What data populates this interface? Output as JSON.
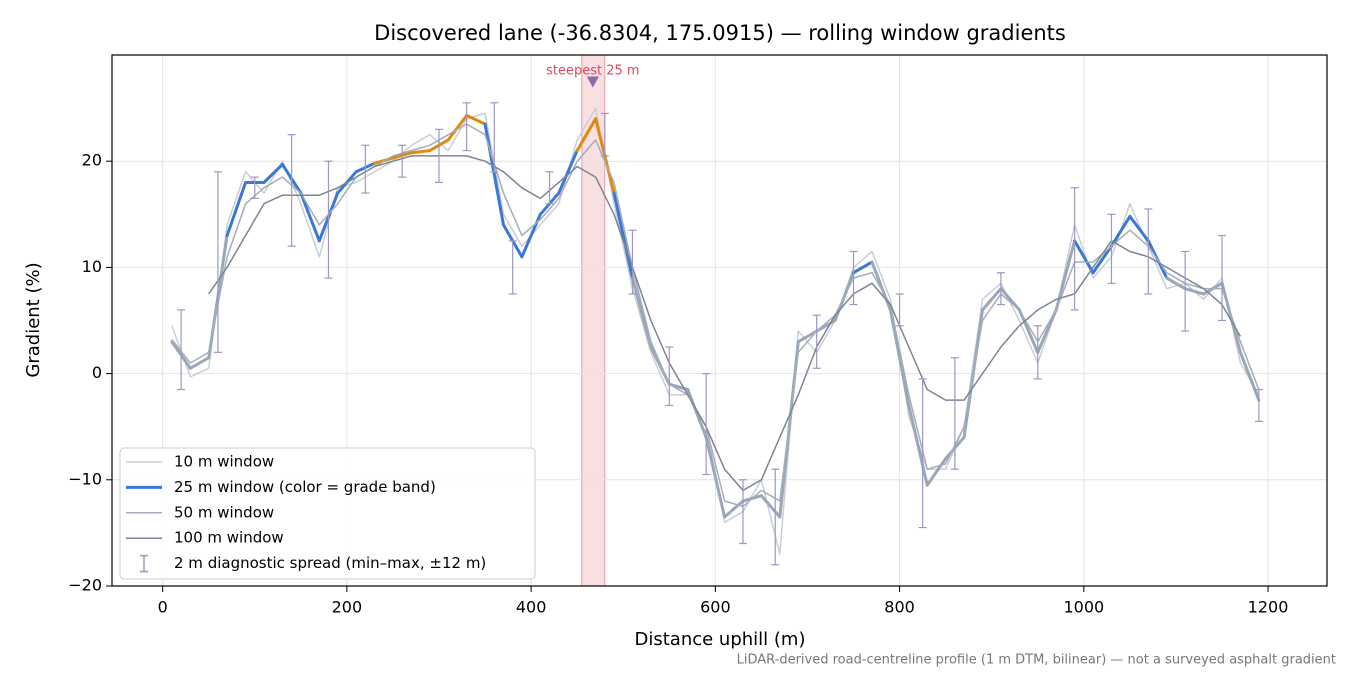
{
  "chart_data": {
    "type": "line",
    "title": "Discovered lane (-36.8304, 175.0915) — rolling window gradients",
    "x_label": "Distance uphill (m)",
    "y_label": "Gradient (%)",
    "footnote": "LiDAR-derived road-centreline profile (1 m DTM, bilinear) — not a surveyed asphalt gradient",
    "xlim": [
      -55,
      1264
    ],
    "ylim": [
      -20,
      30
    ],
    "xticks": [
      0,
      200,
      400,
      600,
      800,
      1000,
      1200
    ],
    "yticks": [
      {
        "value": -20,
        "label": "−20"
      },
      {
        "value": -10,
        "label": "−10"
      },
      0,
      10,
      20
    ],
    "grid": true,
    "legend": "lower left",
    "x": [
      10,
      30,
      50,
      70,
      90,
      110,
      130,
      150,
      170,
      190,
      210,
      230,
      250,
      270,
      290,
      310,
      330,
      350,
      370,
      390,
      410,
      430,
      450,
      470,
      490,
      510,
      530,
      550,
      570,
      590,
      610,
      630,
      650,
      670,
      690,
      710,
      730,
      750,
      770,
      790,
      810,
      830,
      850,
      870,
      890,
      910,
      930,
      950,
      970,
      990,
      1010,
      1030,
      1050,
      1070,
      1090,
      1110,
      1130,
      1150,
      1170,
      1190
    ],
    "series": [
      {
        "name": "10 m window",
        "color": "#c9ced6",
        "width": 1.5,
        "values": [
          4.5,
          -0.3,
          0.5,
          14,
          19,
          17,
          20,
          16,
          11,
          17.5,
          18,
          19,
          20,
          21.5,
          22.5,
          21,
          24,
          24.5,
          15,
          12,
          14,
          16,
          22,
          25,
          16,
          8,
          2,
          -2,
          -2,
          -5,
          -14,
          -13,
          -10,
          -17,
          4,
          2,
          5,
          10,
          11.5,
          7,
          -4,
          -9,
          -9,
          -5,
          7,
          8.5,
          5,
          1,
          6,
          14,
          9,
          11,
          16,
          12,
          8,
          8.5,
          7,
          9,
          1,
          -2
        ]
      },
      {
        "name": "25 m window (color = grade band)",
        "color": "#9aa7b8",
        "width": 3,
        "grade_bands": [
          {
            "min": 20,
            "color": "#e08a0b"
          },
          {
            "min": 10,
            "color": "#3a78d4"
          }
        ],
        "values": [
          3,
          0.5,
          1.5,
          13,
          18,
          18,
          19.7,
          17,
          12.5,
          17,
          19,
          19.8,
          20.3,
          20.8,
          21,
          22,
          24.3,
          23.5,
          14,
          11,
          15,
          17,
          21,
          24,
          17,
          9,
          2.5,
          -1,
          -1.5,
          -6,
          -13.5,
          -12,
          -11.5,
          -13.5,
          3,
          4,
          5,
          9.5,
          10.5,
          6,
          -3,
          -10.5,
          -8,
          -6,
          6,
          8,
          6,
          2,
          6,
          12.5,
          9.5,
          12,
          14.8,
          12.5,
          9,
          8,
          7.5,
          8.5,
          2,
          -2.5
        ]
      },
      {
        "name": "50 m window",
        "color": "#a3adbb",
        "width": 1.5,
        "values": [
          3.2,
          1,
          2,
          11,
          16,
          17.5,
          18.5,
          17,
          14,
          16,
          18.5,
          19.5,
          20.5,
          21,
          21.5,
          22.5,
          23.5,
          22.5,
          17,
          13,
          14.5,
          16.5,
          20,
          22,
          18,
          10,
          3,
          -1,
          -2,
          -5,
          -12,
          -12.5,
          -11,
          -12,
          2,
          4,
          5.5,
          9,
          9.5,
          6.5,
          -2,
          -9,
          -8.5,
          -5,
          5,
          7.5,
          6,
          3,
          6,
          10.5,
          10.5,
          12,
          13.5,
          12,
          9.5,
          8.5,
          8,
          8,
          3,
          -1.5
        ]
      },
      {
        "name": "100 m window",
        "color": "#7c8595",
        "width": 1.5,
        "values": [
          null,
          null,
          7.5,
          10,
          13,
          16,
          16.8,
          16.8,
          16.8,
          17.5,
          18.5,
          19.5,
          20,
          20.5,
          20.5,
          20.5,
          20.5,
          20,
          19,
          17.5,
          16.5,
          18,
          19.5,
          18.5,
          15,
          10,
          5,
          1,
          -2,
          -5,
          -9,
          -11,
          -10,
          -6,
          -2,
          2.5,
          5.5,
          7.5,
          8.5,
          6.5,
          2.5,
          -1.5,
          -2.5,
          -2.5,
          0,
          2.5,
          4.5,
          6,
          7,
          7.5,
          10,
          12.5,
          11.5,
          11,
          10,
          9,
          8,
          6.5,
          3.5,
          null
        ]
      },
      {
        "name": "2 m diagnostic spread (min–max, ±12 m)",
        "color": "#9d97c4",
        "kind": "errorbar",
        "x": [
          20,
          60,
          100,
          140,
          180,
          220,
          260,
          300,
          330,
          360,
          380,
          420,
          480,
          510,
          550,
          590,
          630,
          665,
          710,
          750,
          800,
          825,
          860,
          910,
          950,
          990,
          1030,
          1070,
          1110,
          1150,
          1190
        ],
        "low": [
          -1.5,
          2,
          16.5,
          12,
          9,
          17,
          18.5,
          18,
          21,
          19,
          7.5,
          16,
          20.5,
          7.5,
          -3,
          -9.5,
          -16,
          -18,
          0.5,
          6.5,
          4.5,
          -14.5,
          -9,
          6.5,
          -0.5,
          6,
          8.5,
          7.5,
          4,
          5,
          -4.5
        ],
        "high": [
          6,
          19,
          18.5,
          22.5,
          20,
          21.5,
          21.5,
          23,
          25.5,
          25.5,
          12.5,
          19,
          24.5,
          13.5,
          2.5,
          0,
          -10,
          -9,
          5.5,
          11.5,
          7.5,
          -0.5,
          1.5,
          9.5,
          4.5,
          17.5,
          15,
          15.5,
          11.5,
          13,
          -1.5
        ]
      }
    ],
    "highlight": {
      "xlim": [
        455,
        480
      ],
      "label": "steepest 25 m",
      "marker_x": 467,
      "marker_y": 27.5,
      "color": "#d94b5c"
    }
  }
}
